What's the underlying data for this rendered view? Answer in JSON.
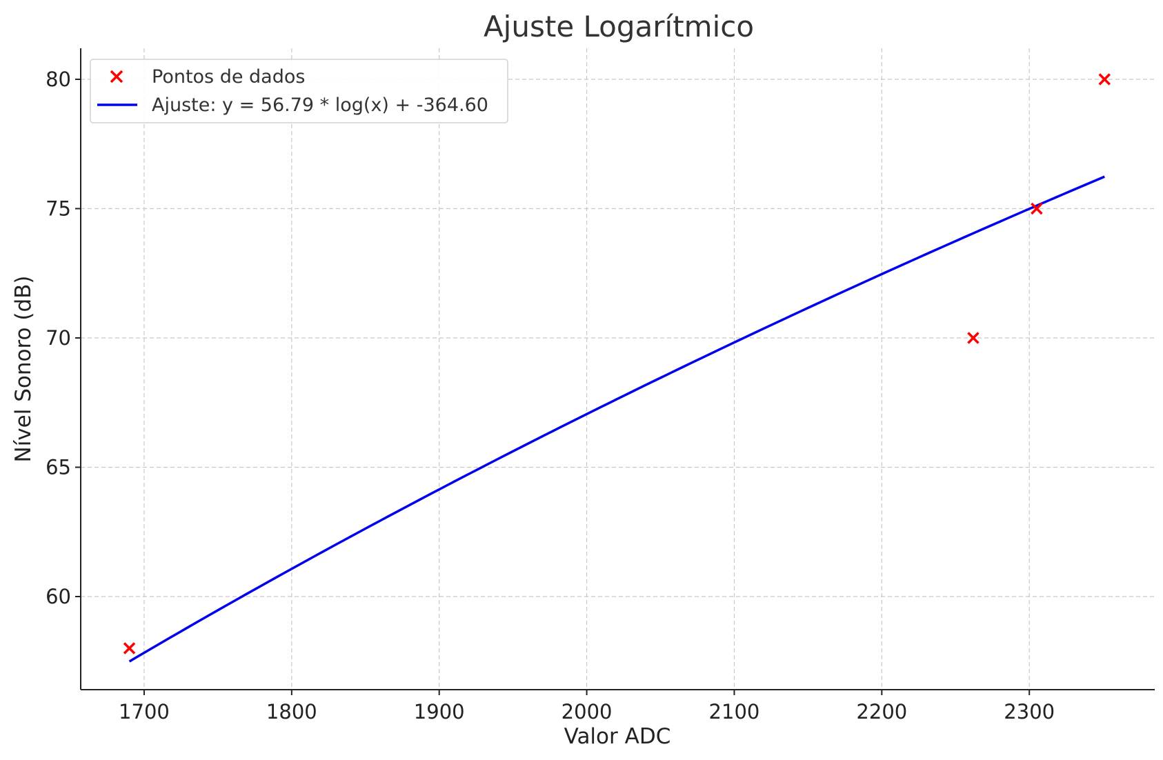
{
  "chart_data": {
    "type": "scatter",
    "title": "Ajuste Logarítmico",
    "xlabel": "Valor ADC",
    "ylabel": "Nível Sonoro (dB)",
    "xlim": [
      1657,
      2385
    ],
    "ylim": [
      56.4,
      81.2
    ],
    "xticks": [
      1700,
      1800,
      1900,
      2000,
      2100,
      2200,
      2300
    ],
    "yticks": [
      60,
      65,
      70,
      75,
      80
    ],
    "grid": true,
    "legend_position": "top-left",
    "series": [
      {
        "name": "Pontos de dados",
        "kind": "scatter",
        "marker": "x",
        "color": "#ff0000",
        "x": [
          1690,
          2262,
          2305,
          2351
        ],
        "y": [
          58,
          70,
          75,
          80
        ]
      },
      {
        "name": "Ajuste: y = 56.79 * log(x) + -364.60",
        "kind": "line",
        "color": "#0000ee",
        "fit": {
          "a": 56.79,
          "b": -364.6,
          "x_range": [
            1690,
            2351
          ]
        }
      }
    ]
  }
}
